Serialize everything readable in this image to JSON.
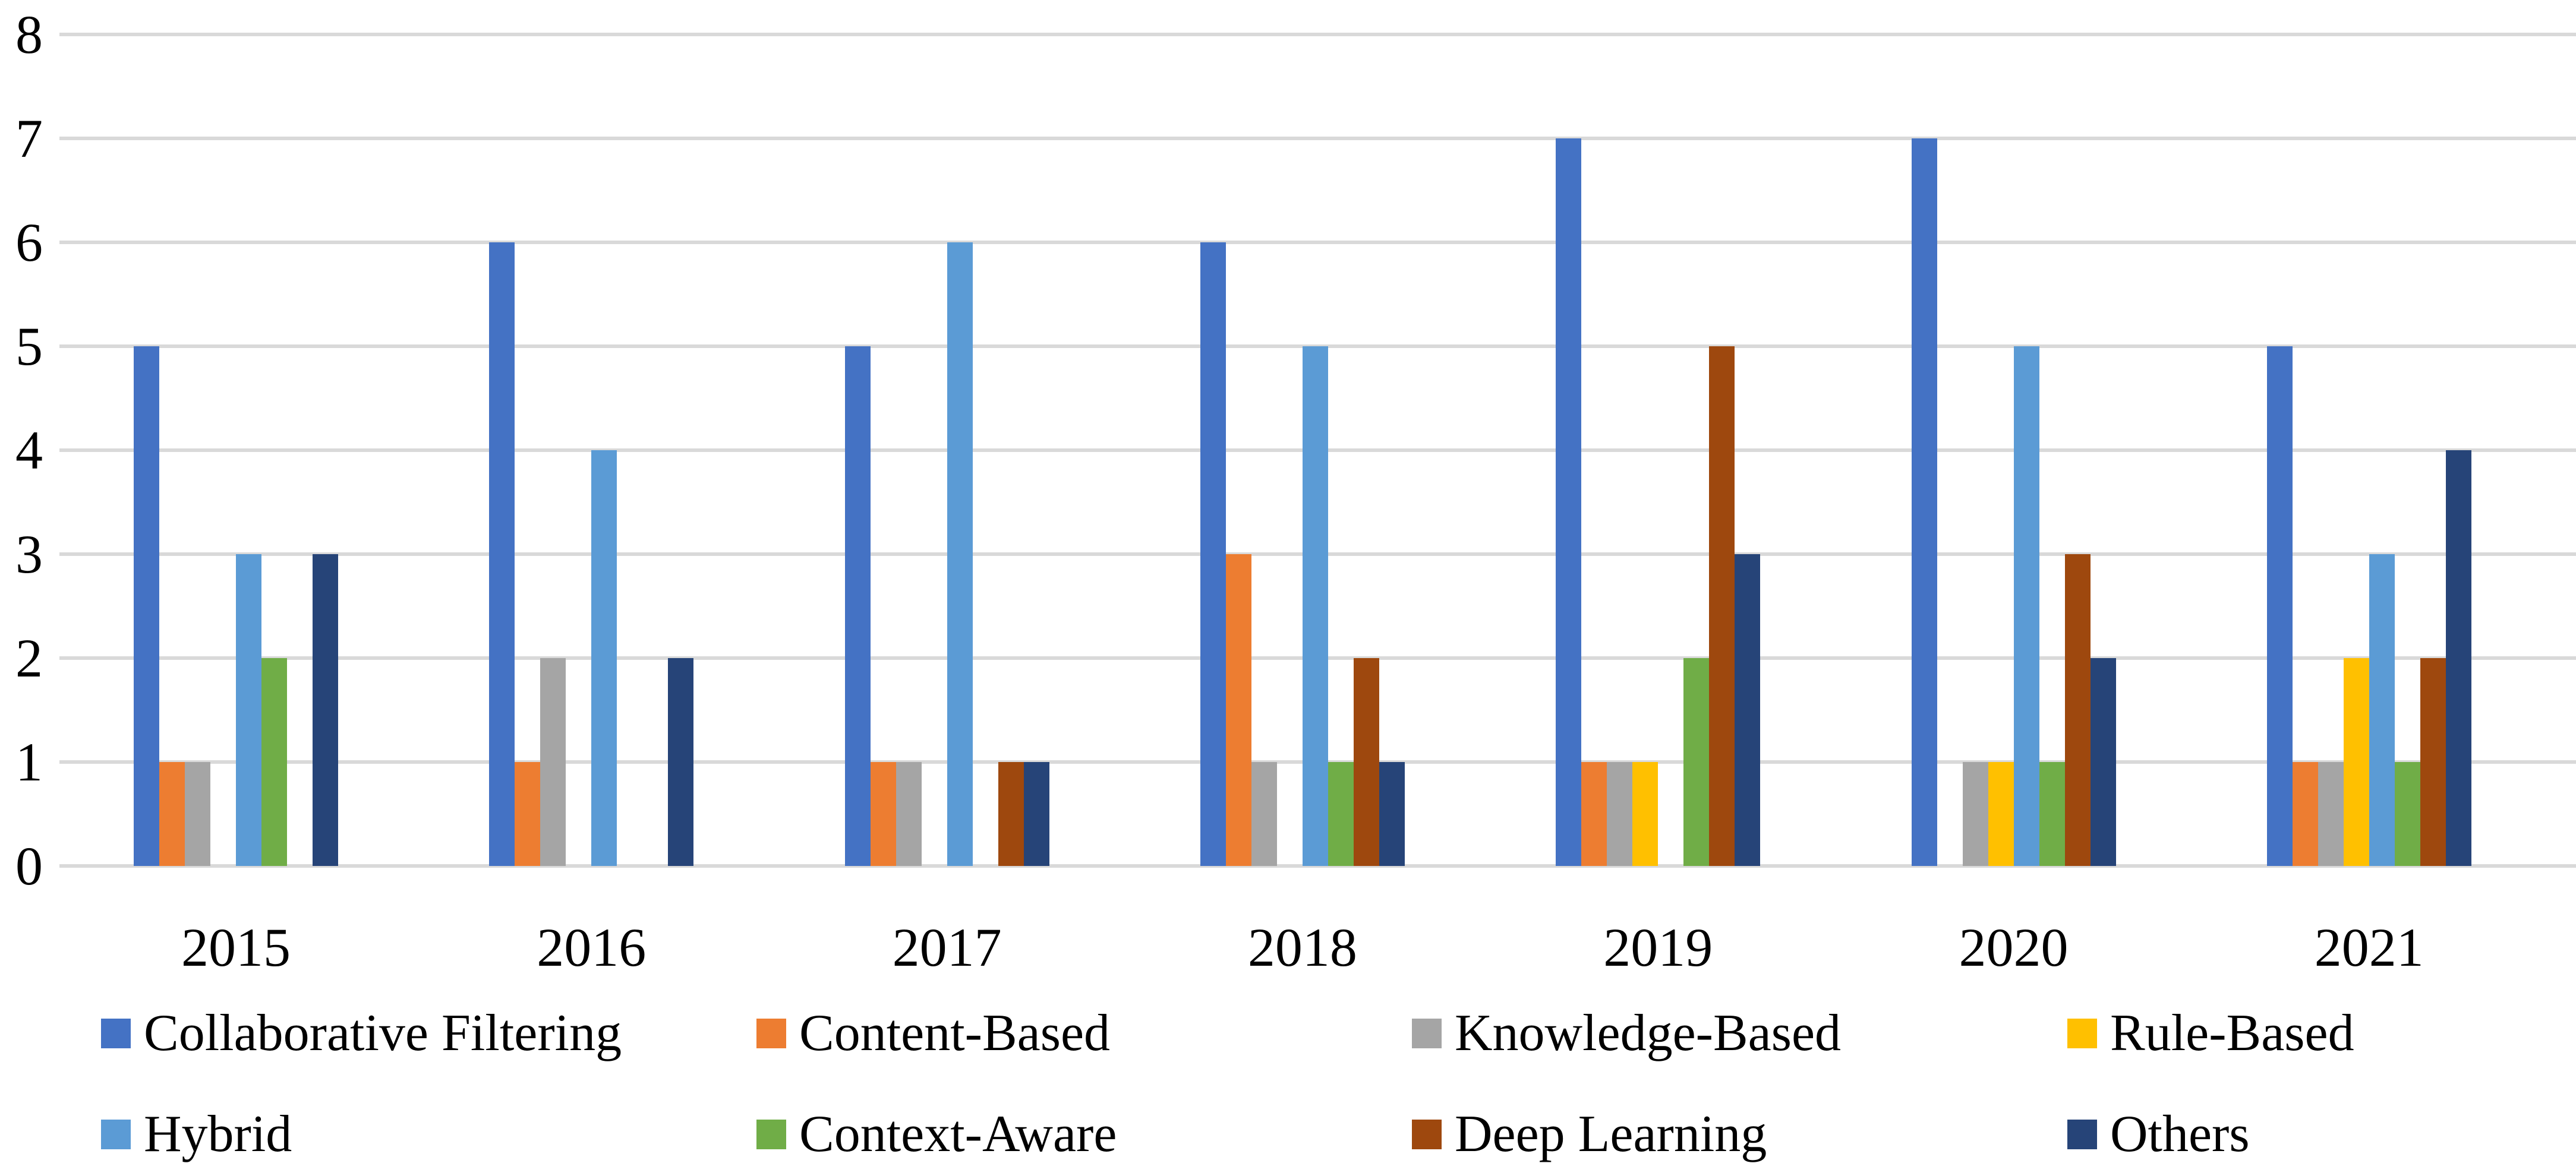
{
  "chart_data": {
    "type": "bar",
    "title": "",
    "categories": [
      "2015",
      "2016",
      "2017",
      "2018",
      "2019",
      "2020",
      "2021"
    ],
    "series": [
      {
        "name": "Collaborative Filtering",
        "color": "#4472C4",
        "values": [
          5,
          6,
          5,
          6,
          7,
          7,
          5
        ]
      },
      {
        "name": "Content-Based",
        "color": "#ED7D31",
        "values": [
          1,
          1,
          1,
          3,
          1,
          0,
          1
        ]
      },
      {
        "name": "Knowledge-Based",
        "color": "#A5A5A5",
        "values": [
          1,
          2,
          1,
          1,
          1,
          1,
          1
        ]
      },
      {
        "name": "Rule-Based",
        "color": "#FFC000",
        "values": [
          0,
          0,
          0,
          0,
          1,
          1,
          2
        ]
      },
      {
        "name": "Hybrid",
        "color": "#5B9BD5",
        "values": [
          3,
          4,
          6,
          5,
          0,
          5,
          3
        ]
      },
      {
        "name": "Context-Aware",
        "color": "#70AD47",
        "values": [
          2,
          0,
          0,
          1,
          2,
          1,
          1
        ]
      },
      {
        "name": "Deep Learning",
        "color": "#9E480E",
        "values": [
          0,
          0,
          1,
          2,
          5,
          3,
          2
        ]
      },
      {
        "name": "Others",
        "color": "#264478",
        "values": [
          3,
          2,
          1,
          1,
          3,
          2,
          4
        ]
      }
    ],
    "y_axis": {
      "min": 0,
      "max": 8,
      "step": 1,
      "tick_labels": [
        "0",
        "1",
        "2",
        "3",
        "4",
        "5",
        "6",
        "7",
        "8"
      ]
    },
    "grid": true,
    "gridline_color": "#D9D9D9",
    "legend_position": "bottom",
    "legend_rows": [
      [
        "Collaborative Filtering",
        "Content-Based",
        "Knowledge-Based",
        "Rule-Based"
      ],
      [
        "Hybrid",
        "Context-Aware",
        "Deep Learning",
        "Others"
      ]
    ]
  }
}
